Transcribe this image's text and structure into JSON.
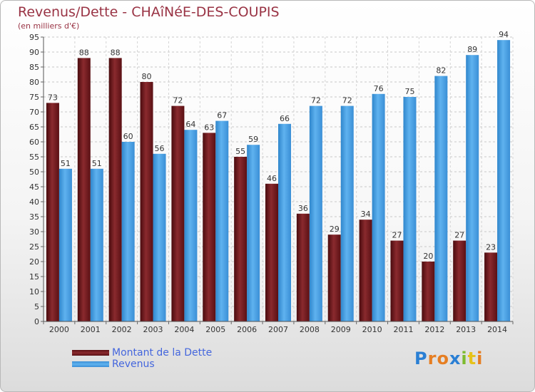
{
  "title": "Revenus/Dette - CHAîNéE-DES-COUPIS",
  "subtitle": "(en milliers d'€)",
  "logo_letters": [
    "P",
    "r",
    "o",
    "x",
    "i",
    "t",
    "i"
  ],
  "logo_colors": [
    "#2a7fd4",
    "#e67e22",
    "#e67e22",
    "#2a7fd4",
    "#7dbb2f",
    "#e6c21a",
    "#e67e22"
  ],
  "colors": {
    "dette": "#6e1a1e",
    "revenus": "#4aa3e6"
  },
  "chart_data": {
    "type": "bar",
    "categories": [
      "2000",
      "2001",
      "2002",
      "2003",
      "2004",
      "2005",
      "2006",
      "2007",
      "2008",
      "2009",
      "2010",
      "2011",
      "2012",
      "2013",
      "2014"
    ],
    "series": [
      {
        "name": "Montant de la Dette",
        "values": [
          73,
          88,
          88,
          80,
          72,
          63,
          55,
          46,
          36,
          29,
          34,
          27,
          20,
          27,
          23
        ]
      },
      {
        "name": "Revenus",
        "values": [
          51,
          51,
          60,
          56,
          64,
          67,
          59,
          66,
          72,
          72,
          76,
          75,
          82,
          89,
          94
        ]
      }
    ],
    "ylim": [
      0,
      95
    ],
    "yticks": [
      0,
      5,
      10,
      15,
      20,
      25,
      30,
      35,
      40,
      45,
      50,
      55,
      60,
      65,
      70,
      75,
      80,
      85,
      90,
      95
    ],
    "grid": true,
    "legend_position": "bottom-left"
  }
}
